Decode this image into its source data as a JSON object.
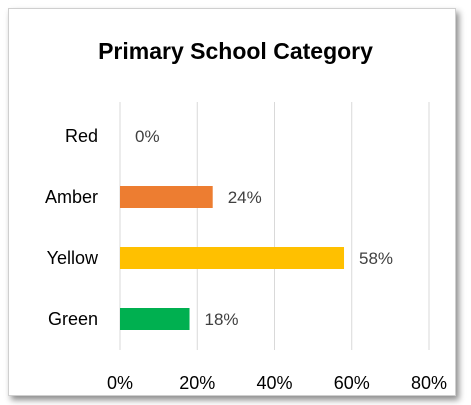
{
  "chart_data": {
    "type": "bar",
    "orientation": "horizontal",
    "title": "Primary School Category",
    "categories": [
      "Red",
      "Amber",
      "Yellow",
      "Green"
    ],
    "values": [
      0,
      24,
      58,
      18
    ],
    "data_labels": [
      "0%",
      "24%",
      "58%",
      "18%"
    ],
    "colors": [
      "#e03c31",
      "#ed7d31",
      "#ffc000",
      "#00b050"
    ],
    "xlim": [
      0,
      80
    ],
    "x_ticks": [
      0,
      20,
      40,
      60,
      80
    ],
    "x_tick_labels": [
      "0%",
      "20%",
      "40%",
      "60%",
      "80%"
    ],
    "xlabel": "",
    "ylabel": "",
    "grid": "vertical",
    "legend": "none",
    "gridline_color": "#d9d9d9"
  }
}
